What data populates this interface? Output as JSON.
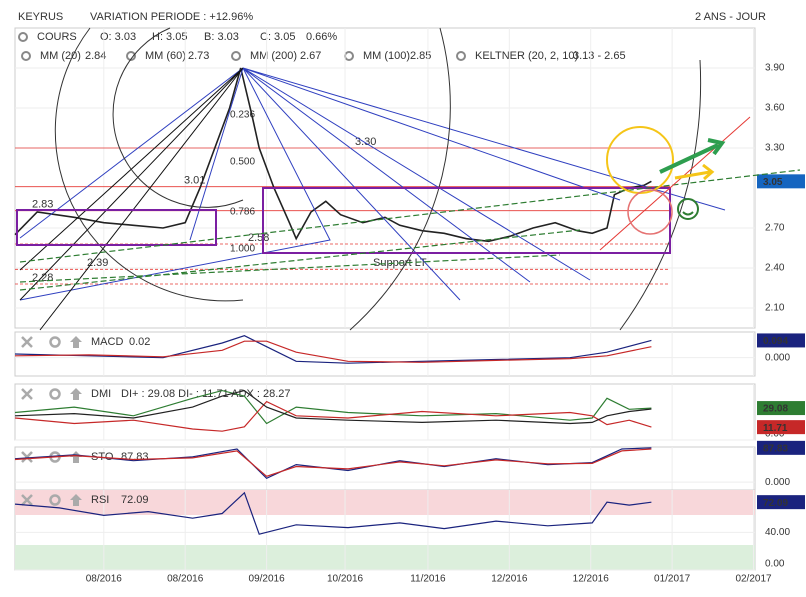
{
  "header": {
    "title": "KEYRUS",
    "variation": "VARIATION PERIODE : +12.96%",
    "period": "2 ANS - JOUR"
  },
  "legend": {
    "o": "O: 3.03",
    "h": "H: 3.05",
    "b": "B: 3.03",
    "c": "C: 3.05",
    "change": "0.66%",
    "mas": [
      {
        "name": "MM (20)",
        "value": "2.84",
        "color": "#e53935"
      },
      {
        "name": "MM (60)",
        "value": "2.73",
        "color": "#f5a623"
      },
      {
        "name": "MM (200)",
        "value": "2.67",
        "color": "#43a047"
      },
      {
        "name": "MM (100)",
        "value": "2.85",
        "color": "#4fc3f7"
      },
      {
        "name": "KELTNER (20, 2, 10)",
        "value": "3.13 - 2.65",
        "color": "#2e7d32"
      }
    ]
  },
  "chart_data": [
    {
      "type": "line",
      "x": [
        0,
        3,
        8,
        12,
        16,
        20,
        23,
        25,
        27,
        29,
        30.5,
        32,
        33,
        35,
        37,
        38,
        40,
        42,
        44,
        47,
        50,
        52,
        55,
        58,
        61,
        64,
        67,
        70,
        73,
        76,
        78,
        80,
        81,
        83,
        85,
        86
      ],
      "series": [
        {
          "name": "COURS",
          "color": "#222222",
          "values": [
            2.65,
            2.82,
            2.78,
            2.74,
            2.72,
            2.7,
            2.74,
            3.0,
            3.3,
            3.6,
            3.9,
            3.55,
            3.3,
            3.0,
            2.75,
            2.62,
            2.82,
            2.9,
            2.8,
            2.74,
            2.78,
            2.72,
            2.68,
            2.66,
            2.62,
            2.6,
            2.64,
            2.7,
            2.74,
            2.68,
            2.66,
            2.7,
            2.95,
            3.0,
            3.02,
            3.05
          ]
        }
      ],
      "xlim": [
        0,
        100
      ],
      "xticks": [
        {
          "value": 12,
          "label": "08/2016"
        },
        {
          "value": 23,
          "label": "08/2016"
        },
        {
          "value": 34,
          "label": "09/2016"
        },
        {
          "value": 44.6,
          "label": "10/2016"
        },
        {
          "value": 55.8,
          "label": "11/2016"
        },
        {
          "value": 66.8,
          "label": "12/2016"
        },
        {
          "value": 77.8,
          "label": "12/2016"
        },
        {
          "value": 88.8,
          "label": "01/2017"
        },
        {
          "value": 99.8,
          "label": "02/2017"
        }
      ],
      "ylim": [
        1.95,
        4.2
      ],
      "yticks": [
        {
          "value": 2.1,
          "label": "2.10"
        },
        {
          "value": 2.4,
          "label": "2.40"
        },
        {
          "value": 2.7,
          "label": "2.70"
        },
        {
          "value": 3.3,
          "label": "3.30"
        },
        {
          "value": 3.6,
          "label": "3.60"
        },
        {
          "value": 3.9,
          "label": "3.90"
        }
      ],
      "levels": [
        {
          "value": 3.3,
          "label": "3.30"
        },
        {
          "value": 3.01,
          "label": "3.01"
        },
        {
          "value": 2.83,
          "label": "2.83"
        },
        {
          "value": 2.58,
          "label": "2.58"
        },
        {
          "value": 2.39,
          "label": "2.39"
        },
        {
          "value": 2.28,
          "label": "2.28"
        }
      ],
      "fib": [
        "0.236",
        "0.500",
        "0.786",
        "1.000"
      ],
      "support": "Support LT",
      "last": [
        {
          "value": 3.05,
          "label": "3.05",
          "color": "#1565c0"
        }
      ]
    },
    {
      "type": "line",
      "title": "MACD",
      "value_text": "0.02",
      "x": [
        0,
        10,
        20,
        28,
        31,
        34,
        38,
        45,
        55,
        65,
        75,
        80,
        86
      ],
      "series": [
        {
          "color": "#1a237e",
          "values": [
            0.02,
            0.01,
            0.0,
            0.08,
            0.12,
            0.06,
            -0.02,
            -0.03,
            -0.02,
            -0.01,
            0.0,
            0.03,
            0.094
          ]
        },
        {
          "color": "#c62828",
          "values": [
            0.01,
            0.015,
            0.005,
            0.04,
            0.09,
            0.09,
            0.03,
            -0.02,
            -0.025,
            -0.015,
            -0.005,
            0.01,
            0.06
          ]
        }
      ],
      "ylim": [
        -0.1,
        0.14
      ],
      "yticks": [
        {
          "value": 0,
          "label": "0.000"
        }
      ],
      "last": [
        {
          "value": 0.094,
          "label": "0.094",
          "color": "#1a237e"
        }
      ]
    },
    {
      "type": "line",
      "title": "DMI",
      "value_text": "DI+ : 29.08 DI- : 11.71 ADX : 28.27",
      "x": [
        0,
        8,
        16,
        24,
        28,
        31,
        34,
        38,
        45,
        55,
        65,
        75,
        78,
        80,
        83,
        86
      ],
      "series": [
        {
          "color": "#2e7d32",
          "values": [
            25,
            30,
            22,
            38,
            45,
            40,
            15,
            30,
            25,
            22,
            24,
            18,
            20,
            38,
            28,
            29.08
          ]
        },
        {
          "color": "#c62828",
          "values": [
            20,
            15,
            18,
            10,
            8,
            12,
            35,
            22,
            20,
            26,
            22,
            25,
            22,
            14,
            18,
            11.71
          ]
        },
        {
          "color": "#222222",
          "values": [
            22,
            24,
            20,
            30,
            40,
            45,
            30,
            20,
            18,
            16,
            18,
            15,
            16,
            22,
            26,
            28.27
          ]
        }
      ],
      "ylim": [
        0,
        51
      ],
      "yticks": [
        {
          "value": 0,
          "label": "0.00"
        }
      ],
      "last": [
        {
          "value": 29.08,
          "label": "29.08",
          "color": "#2e7d32"
        },
        {
          "value": 11.71,
          "label": "11.71",
          "color": "#c62828"
        }
      ]
    },
    {
      "type": "line",
      "title": "STO",
      "value_text": "87.83",
      "x": [
        0,
        8,
        16,
        24,
        30,
        34,
        38,
        45,
        52,
        58,
        65,
        72,
        78,
        82,
        86
      ],
      "series": [
        {
          "color": "#1a237e",
          "values": [
            60,
            70,
            55,
            65,
            85,
            10,
            45,
            30,
            55,
            40,
            60,
            45,
            50,
            85,
            87.83
          ]
        },
        {
          "color": "#c62828",
          "values": [
            58,
            68,
            58,
            62,
            80,
            15,
            40,
            34,
            52,
            42,
            57,
            47,
            48,
            80,
            85
          ]
        }
      ],
      "ylim": [
        -20,
        90
      ],
      "yticks": [
        {
          "value": 0,
          "label": "0.000"
        }
      ],
      "last": [
        {
          "value": 87.83,
          "label": "87.83",
          "color": "#1a237e"
        }
      ]
    },
    {
      "type": "line",
      "title": "RSI",
      "value_text": "72.09",
      "x": [
        0,
        6,
        12,
        18,
        24,
        28,
        31,
        33,
        38,
        45,
        52,
        58,
        65,
        72,
        78,
        80,
        83,
        86
      ],
      "series": [
        {
          "color": "#1a237e",
          "values": [
            70,
            66,
            58,
            62,
            55,
            60,
            82,
            38,
            48,
            45,
            50,
            44,
            52,
            47,
            50,
            72,
            69,
            72.09
          ]
        }
      ],
      "ylim": [
        0,
        85
      ],
      "yticks": [
        {
          "value": 40,
          "label": "40.00"
        },
        {
          "value": 0,
          "label": "0.00"
        }
      ],
      "last": [
        {
          "value": 72.09,
          "label": "72.09",
          "color": "#1a237e"
        }
      ]
    }
  ]
}
